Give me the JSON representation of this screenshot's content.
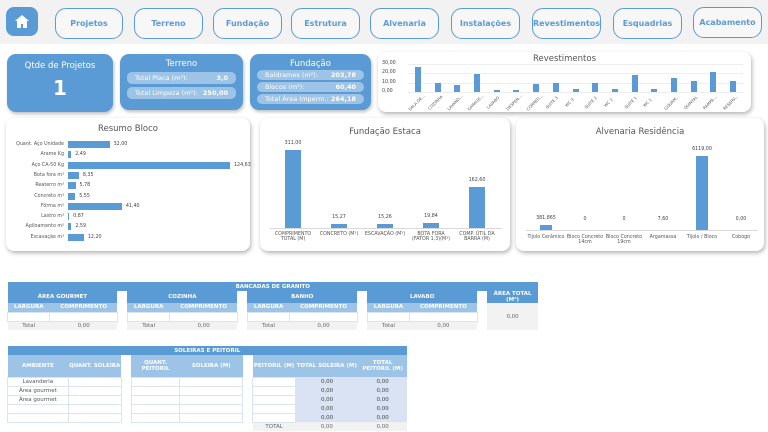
{
  "nav": {
    "home_icon": "home-icon",
    "buttons": [
      "Projetos",
      "Terreno",
      "Fundação",
      "Estrutura",
      "Alvenaria",
      "Instalações",
      "Revestimentos",
      "Esquadrias",
      "Acabamento"
    ]
  },
  "kpi": {
    "title": "Qtde de Projetos",
    "value": "1"
  },
  "terreno": {
    "title": "Terreno",
    "rows": [
      {
        "label": "Total Placa (m²):",
        "value": "3,0"
      },
      {
        "label": "Total Limpeza (m²):",
        "value": "250,00"
      }
    ]
  },
  "fundacao": {
    "title": "Fundação",
    "rows": [
      {
        "label": "Baldrames (m²):",
        "value": "203,78"
      },
      {
        "label": "Blocos (m²):",
        "value": "60,40"
      },
      {
        "label": "Total Área Imperm.:",
        "value": "264,18"
      }
    ]
  },
  "chart_data": [
    {
      "type": "bar",
      "title": "Revestimentos",
      "categories": [
        "SALA DE...",
        "COZINHA",
        "LAVAND...",
        "GARAGE...",
        "LAVABO",
        "DESPEN...",
        "CORRED...",
        "SUITE 3",
        "WC 3",
        "SUITE 2",
        "WC 2",
        "SUITE 1",
        "WC 1",
        "GOURM...",
        "QUINTAL",
        "RAMPA...",
        "RESERV..."
      ],
      "values": [
        27,
        10,
        7.5,
        19,
        2,
        2,
        8.5,
        9.5,
        3,
        9.5,
        3,
        18,
        3.5,
        15,
        12,
        21,
        12
      ],
      "yticks": [
        "30,00",
        "20,00",
        "10,00",
        "0,00"
      ],
      "ylim": [
        0,
        30
      ]
    },
    {
      "type": "bar",
      "orientation": "horizontal",
      "title": "Resumo Bloco",
      "categories": [
        "Quant. Aço Unidade",
        "Arame Kg",
        "Aço CA-50 Kg",
        "Bota fora m³",
        "Reaterro m³",
        "Concreto m³",
        "Fôrma m²",
        "Lastro m³",
        "Apiloamento m²",
        "Escavação  m³"
      ],
      "values": [
        32.0,
        2.49,
        124.63,
        8.35,
        5.78,
        5.55,
        41.4,
        0.87,
        2.59,
        12.2
      ],
      "labels": [
        "32,00",
        "2,49",
        "124,63",
        "8,35",
        "5,78",
        "5,55",
        "41,40",
        "0,87",
        "2,59",
        "12,20"
      ]
    },
    {
      "type": "bar",
      "title": "Fundação Estaca",
      "categories": [
        "COMPRIMENTO TOTAL (M)",
        "CONCRETO (M³)",
        "ESCAVAÇÃO (M³)",
        "BOTA FORA (FATOR 1,3)(M³)",
        "COMP. ÚTIL DA BARRA (M)"
      ],
      "values": [
        311.0,
        15.27,
        15.26,
        19.84,
        162.6
      ],
      "labels": [
        "311,00",
        "15,27",
        "15,26",
        "19,84",
        "162,60"
      ]
    },
    {
      "type": "bar",
      "title": "Alvenaria Residência",
      "categories": [
        "Tijolo Cerâmico",
        "Bloco Concreto 14cm",
        "Bloco Concreto 19cm",
        "Argamassa",
        "Tijolo / Bloco",
        "Cobogó"
      ],
      "values": [
        381.865,
        0,
        0,
        7.6,
        6119.0,
        0
      ],
      "labels": [
        "381,865",
        "0",
        "0",
        "7,60",
        "6119,00",
        "0,00"
      ]
    }
  ],
  "bancadas": {
    "title": "BANCADAS DE GRANITO",
    "groups": [
      "ÁREA GOURMET",
      "COZINHA",
      "BANHO",
      "LAVABO"
    ],
    "sub": [
      "LARGURA",
      "COMPRIMENTO"
    ],
    "total_label": "Total",
    "total_value": "0,00",
    "area_total_label": "ÁREA TOTAL (M²)",
    "area_total_value": "0,00"
  },
  "soleiras": {
    "title": "SOLEIRAS E PEITORIL",
    "headers": [
      "AMBIENTE",
      "QUANT. SOLEIRA",
      "QUANT. PEITORIL",
      "SOLEIRA (M)",
      "PEITORIL (M)",
      "TOTAL SOLEIRA (M)",
      "TOTAL PEITORIL (M)"
    ],
    "ambientes": [
      "Lavanderia",
      "Área gourmet",
      "Área gourmet",
      "",
      ""
    ],
    "zero": "0,00",
    "total_label": "TOTAL"
  }
}
